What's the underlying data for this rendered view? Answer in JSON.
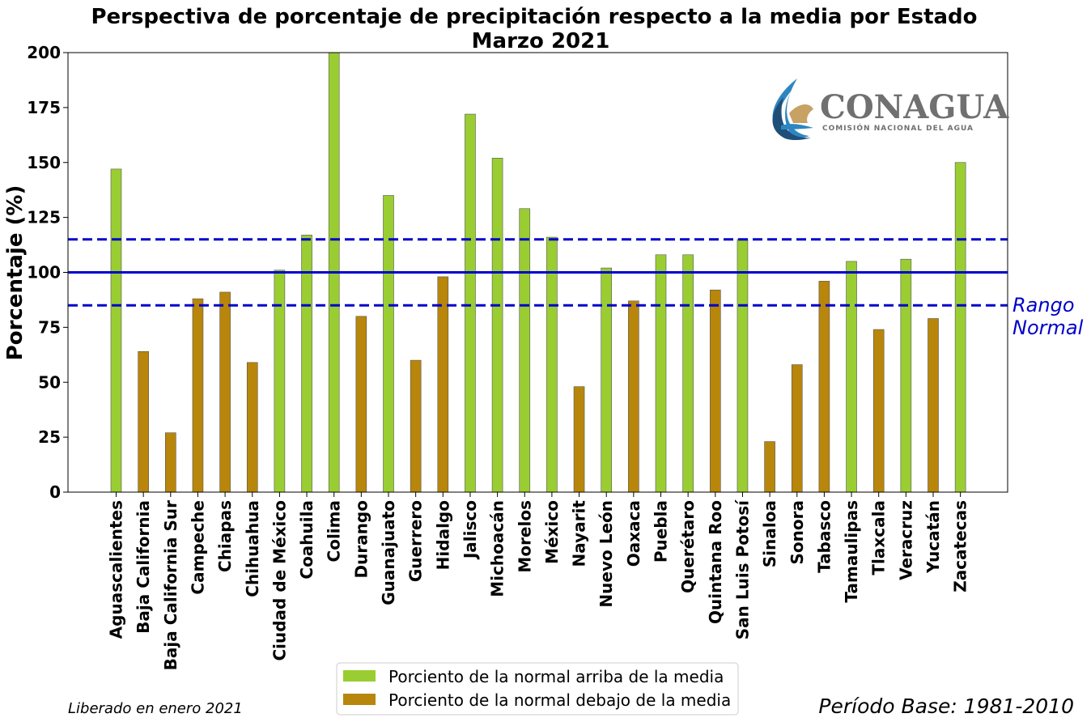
{
  "chart_data": {
    "type": "bar",
    "title": [
      "Perspectiva de porcentaje de precipitación respecto a la media por Estado",
      "Marzo 2021"
    ],
    "ylabel": "Porcentaje (%)",
    "xlabel": "",
    "ylim": [
      0,
      200
    ],
    "yticks": [
      0,
      25,
      50,
      75,
      100,
      125,
      150,
      175,
      200
    ],
    "categories": [
      "Aguascalientes",
      "Baja California",
      "Baja California Sur",
      "Campeche",
      "Chiapas",
      "Chihuahua",
      "Ciudad de México",
      "Coahuila",
      "Colima",
      "Durango",
      "Guanajuato",
      "Guerrero",
      "Hidalgo",
      "Jalisco",
      "Michoacán",
      "Morelos",
      "México",
      "Nayarit",
      "Nuevo León",
      "Oaxaca",
      "Puebla",
      "Querétaro",
      "Quintana Roo",
      "San Luis Potosí",
      "Sinaloa",
      "Sonora",
      "Tabasco",
      "Tamaulipas",
      "Tlaxcala",
      "Veracruz",
      "Yucatán",
      "Zacatecas"
    ],
    "values": [
      147,
      64,
      27,
      88,
      91,
      59,
      101,
      117,
      200,
      80,
      135,
      60,
      98,
      172,
      152,
      129,
      116,
      48,
      102,
      87,
      108,
      108,
      92,
      115,
      23,
      58,
      96,
      105,
      74,
      106,
      79,
      150
    ],
    "series": [
      {
        "name": "Porciento de la normal arriba de la media",
        "color": "#9acd32",
        "indices": [
          0,
          6,
          7,
          8,
          10,
          13,
          14,
          15,
          16,
          18,
          20,
          21,
          23,
          27,
          29,
          31
        ]
      },
      {
        "name": "Porciento de la normal debajo de la media",
        "color": "#b8860b",
        "indices": [
          1,
          2,
          3,
          4,
          5,
          9,
          11,
          12,
          17,
          19,
          22,
          24,
          25,
          26,
          28,
          30
        ]
      }
    ],
    "reference_lines": [
      {
        "value": 115,
        "style": "dashed",
        "color": "#0000cc"
      },
      {
        "value": 100,
        "style": "solid",
        "color": "#0000cc"
      },
      {
        "value": 85,
        "style": "dashed",
        "color": "#0000cc"
      }
    ],
    "range_label": [
      "Rango",
      "Normal"
    ],
    "legend_position": "bottom-center",
    "grid": false
  },
  "logo": {
    "name": "CONAGUA",
    "subtitle": "COMISIÓN NACIONAL DEL AGUA",
    "icon": "conagua-drop-eagle-icon"
  },
  "footer": {
    "released": "Liberado en enero 2021",
    "base_period": "Período Base: 1981-2010"
  }
}
